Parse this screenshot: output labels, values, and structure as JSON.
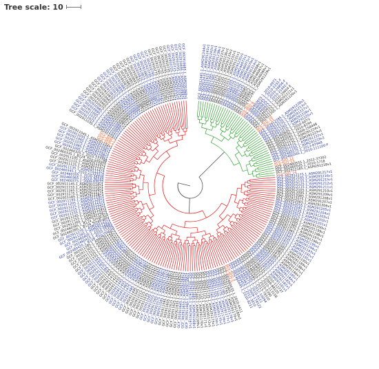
{
  "scale": {
    "label": "Tree scale: 10"
  },
  "colors": {
    "clade_red": "#e41a1c",
    "clade_green": "#2ca02c",
    "root_branch": "#555555",
    "label_blue": "#1f2f9a",
    "label_black": "#222222",
    "label_orange": "#f4511e"
  },
  "leaves": [
    "GCF_002912445.1_ASM291244v1",
    "GCF_002912435.1_ASM291243v1",
    "GCF_002912425.1_ASM291242v1",
    "GCF_002912395.1_ASM291239v1",
    "GCF_002912385.1_ASM291238v1",
    "GCF_002912375.1_ASM291237v1",
    "GCF_002912365.1_ASM291236v1",
    "GCF_002912335.1_ASM291233v1",
    "GCF_002912325.1_ASM291232v1",
    "GCF_002912315.1_ASM291231v1",
    "GCF_002912305.1_ASM291230v1",
    "GCF_002460725.1_ASM246072v1",
    "GCF_002460715.1_ASM246071v1",
    "GCF_002460705.1_ASM246070v1",
    "GCF_002912145.1_ASM291214v1",
    "GCF_002460685.1_ASM246068v1",
    "GCF_002460675.1_ASM246067v1",
    "GCF_002460665.1_ASM246066v1",
    "GCF_002912295.1_ASM291229v1",
    "Gca_SLO_7",
    "Gca_SLO_8",
    "GCF_002460655.1_2010-0073",
    "GCF_002460645.1_2010-5332-F",
    "GCF_002460635.1_2010-20856-F",
    "GCF_002460625.1_2010-21442-F",
    "GCF_002460615.1_2010-29604-E",
    "GCF_002912215.1_ASM291221v1",
    "GCF_002912205.1_ASM291220v1",
    "Gca_SLO_10",
    "Gca_SLO_11",
    "GCF_002912285.1_ASM291228v1",
    "GCF_002912135.1_ASM291213v1",
    "GCF_002912275.1_ASM291227v1",
    "GCF_002912265.1_ASM291226v1",
    "GCF_002912255.1_ASM291225v1",
    "GCF_002460605.1_2010-6073",
    "GCF_002460595.1_2010-8194",
    "GCF_002460585.1_2009-158448",
    "GCF_002912245.1_ASM291224v1",
    "GCF_002912235.1_ASM291223v1",
    "GCF_002912225.1_ASM291222v1",
    "GCF_002912195.1_ASM291219v1",
    "GCF_002460575.1_2013-87948",
    "GCF_002460565.1_2010-111100-F",
    "Gca_SLO_12",
    "Gca_SLO_13",
    "GCF_002460555.1_2012-37302",
    "GCF_002460545.1_2010-1718",
    "GCF_002912185.1_ASM291218v1",
    "Gca_SLO_14",
    "GCF_002912175.1_ASM291217v1",
    "GCF_002912165.1_ASM291216v1",
    "GCF_002912155.1_ASM291215v1",
    "GCF_002912125.1_ASM291212v1",
    "GCF_002912115.1_ASM291211v1",
    "GCF_002912105.1_ASM291210v1",
    "GCF_002912095.1_ASM291209v1",
    "GCF_002912085.1_ASM291208v1",
    "GCF_002912075.1_ASM291207v1",
    "GCF_002912065.1_ASM291206v1",
    "GCF_002912055.1_ASM291205v1",
    "GCF_002912045.1_ASM291204v1",
    "GCF_002912035.1_ASM291203v1",
    "GCF_002912025.1_ASM291202v1",
    "GCF_002912015.1_ASM291201v1",
    "GCF_002912005.1_ASM291200v1",
    "GCF_002911995.1_ASM291199v1",
    "GCF_002911985.1_ASM291198v1",
    "GCF_002911975.1_ASM291197v1",
    "GCF_002911965.1_ASM291196v1",
    "GCF_002911955.1_ASM291195v1",
    "GCF_002911945.1_ASM291194v1",
    "GCF_002911935.1_ASM291193v1",
    "GCF_002911925.1_ASM291192v1",
    "GCF_002911915.1_ASM291191v1",
    "GCF_002911905.1_ASM291190v1",
    "GCF_002911895.1_ASM291189v1",
    "GCF_002911885.1_ASM291188v1",
    "GCF_002911875.1_ASM291187v1",
    "GCF_002911865.1_ASM291186v1",
    "GCF_002911855.1_ASM291185v1",
    "GCF_002911845.1_ASM291184v1",
    "GCF_002911835.1_ASM291183v1",
    "GCF_002911825.1_ASM291182v1",
    "GCF_002911815.1_ASM291181v1",
    "GCF_002460535.1_2010-112737",
    "GCF_002460525.1_2009-88120",
    "GCF_002460515.1_2010-113158",
    "GCF_002460505.1_2010-5390",
    "GCF_002460495.1_2013-79310",
    "GCF_002460485.1_2012-10094",
    "GCF_002460475.1_2010-9121",
    "GCF_002460465.1_2009-176122",
    "GCF_002460455.1_2012-3810",
    "GCF_002460445.1_2010-8211",
    "Gca_SLO_4",
    "Gca_SLO_5",
    "GCF_002460435.1_2010-4411",
    "GCF_002911805.1_ASM291180v1",
    "GCF_002911795.1_ASM291179v1",
    "GCF_002911785.1_ASM291178v1",
    "GCF_002911775.1_ASM291177v1",
    "GCF_002911765.1_ASM291176v1",
    "GCF_002911755.1_ASM291175v1",
    "GCF_002911745.1_ASM291174v1",
    "GCF_002911735.1_ASM291173v1",
    "GCF_002911725.1_ASM291172v1",
    "GCF_002911715.1_ASM291171v1",
    "GCF_002911705.1_ASM291170v1",
    "GCF_002911695.1_ASM291169v1",
    "GCF_002911685.1_ASM291168v1",
    "GCF_002911675.1_ASM291167v1",
    "GCF_002911665.1_ASM291166v1",
    "GCF_002911655.1_ASM291165v1",
    "GCF_002911645.1_ASM291164v1",
    "GCF_002911635.1_ASM291163v1",
    "GCF_002911625.1_ASM291162v1",
    "GCF_002911615.1_ASM291161v1",
    "GCF_002911605.1_ASM291160v1",
    "GCF_002911595.1_ASM291159v1",
    "GCF_002911585.1_ASM291158v1",
    "GCF_002911575.1_ASM291157v1",
    "GCF_002911565.1_ASM291156v1",
    "GCF_002911555.1_ASM291155v1",
    "GCF_002911545.1_ASM291154v1",
    "GCF_002911535.1_ASM291153v1",
    "GCF_002911525.1_ASM291152v1",
    "GCF_002911515.1_ASM291151v1",
    "GCF_002911505.1_ASM291150v1",
    "GCF_002911495.1_ASM291149v1",
    "GCF_002911485.1_ASM291148v1",
    "GCF_002911475.1_ASM291147v1",
    "GCF_002911465.1_ASM291146v1",
    "GCF_002911455.1_ASM291145v1",
    "GCF_002911445.1_ASM291144v1",
    "GCF_002911435.1_ASM291143v1",
    "GCF_002911425.1_ASM291142v1",
    "GCF_002911415.1_ASM291141v1",
    "GCF_002911405.1_ASM291140v1",
    "GCF_002911395.1_ASM291139v1",
    "GCF_002911385.1_ASM291138v1",
    "GCF_002911375.1_ASM291137v1",
    "GCF_002911365.1_ASM291136v1",
    "GCF_002911355.1_ASM291135v1",
    "GCF_002911345.1_ASM291134v1",
    "GCF_002911335.1_ASM291133v1",
    "GCF_002911325.1_ASM291132v1",
    "GCF_002911315.1_ASM291131v1",
    "GCF_002911305.1_ASM291130v1",
    "GCF_002911295.1_ASM291129v1",
    "GCF_002460425.1_B138_Tiny-mucoid",
    "GCF_002460415.1_2010-15206",
    "GCF_002460405.1_2013-39685",
    "GCF_002911285.1_ASM291128v1",
    "GCF_002911275.1_ASM291127v1",
    "GCF_002460395.1_B124_Small-grey",
    "GCF_002460385.1_B124_Small-dull",
    "GCF_002911265.1_ASM291126v1",
    "GCF_002911255.1_ASM291125v1",
    "GCF_002911245.1_ASM291124v1",
    "GCF_002911235.1_ASM291123v1",
    "GCF_002911225.1_ASM291122v1",
    "GCF_002911215.1_ASM291121v1",
    "GCF_002911205.1_ASM291120v1",
    "GCF_002911195.1_ASM291119v1",
    "GCF_002911185.1_ASM291118v1",
    "GCF_002911175.1_ASM291117v1",
    "GCF_002911165.1_ASM291116v1",
    "GCF_002911155.1_ASM291115v1",
    "GCF_002911145.1_ASM291114v1",
    "GCF_002460375.1_2009-93522",
    "GCF_002460365.1_2010-36143",
    "GCF_002460355.1_2010-34330",
    "GCF_002460345.1_2010-113332-D",
    "GCF_002911135.1_ASM291113v1",
    "GCF_002911125.1_ASM291112v1",
    "GCF_002911115.1_ASM291111v1",
    "GCF_002911105.1_ASM291110v1",
    "GCF_002460335.1_B124_Tiny-smooth",
    "GCF_002460325.1_2010-112788",
    "GCF_002911095.1_ASM291109v1",
    "GCF_002911085.1_ASM291108v1",
    "GCF_002911075.1_ASM291107v1",
    "GCF_002911065.1_ASM291106v1",
    "GCF_002911055.1_ASM291105v1",
    "GCF_002911045.1_ASM291104v1",
    "Gca_SLO_1",
    "Gca_SLO_2",
    "Gca_SLO_3",
    "GCF_002911035.1_ASM291103v1",
    "GCF_002911025.1_ASM291102v1",
    "GCF_002911015.1_ASM291101v1",
    "GCF_002911005.1_ASM291100v1",
    "GCF_002910995.1_ASM291099v1",
    "GCF_002910985.1_ASM291098v1",
    "GCF_002910975.1_ASM291097v1",
    "GCF_002910965.1_ASM291096v1",
    "GCF_002910955.1_ASM291095v1",
    "GCF_002910945.1_ASM291094v1",
    "GCF_002910935.1_ASM291093v1",
    "GCF_002910925.1_ASM291092v1",
    "GCF_002910915.1_ASM291091v1",
    "GCF_002910905.1_ASM291090v1",
    "GCF_002910895.1_ASM291089v1",
    "GCF_002910885.1_ASM291088v1",
    "GCF_002910875.1_ASM291087v1",
    "GCF_002910865.1_ASM291086v1",
    "GCF_002910855.1_ASM291085v1",
    "GCF_002910845.1_ASM291084v1",
    "GCF_002910835.1_ASM291083v1",
    "GCF_002910825.1_ASM291082v1",
    "GCF_002910815.1_ASM291081v1",
    "GCF_002910805.1_ASM291080v1",
    "GCF_002910795.1_ASM291079v1",
    "GCF_002910785.1_ASM291078v1",
    "GCF_002910775.1_ASM291077v1",
    "GCF_002910765.1_ASM291076v1",
    "GCF_002910755.1_ASM291075v1",
    "GCF_002910745.1_ASM291074v1",
    "GCF_002910735.1_ASM291073v1",
    "GCF_002910725.1_ASM291072v1",
    "GCF_002910715.1_ASM291071v1",
    "GCF_002910705.1_ASM291070v1",
    "GCF_002910695.1_ASM291069v1",
    "GCF_002910685.1_ASM291068v1"
  ]
}
